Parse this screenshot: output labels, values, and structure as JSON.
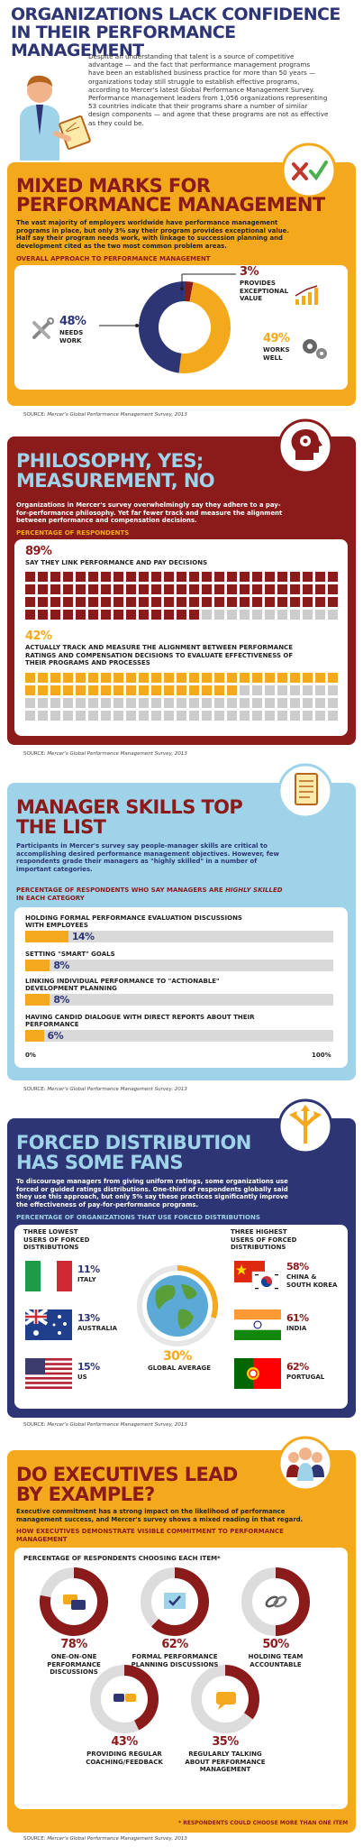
{
  "header": {
    "title_line1": "ORGANIZATIONS LACK CONFIDENCE",
    "title_line2": "IN THEIR PERFORMANCE MANAGEMENT",
    "intro_lines": [
      "Despite an understanding that talent is a source of competitive",
      "advantage — and the fact that performance management programs",
      "have been an established business practice for more than 50 years —",
      "organizations today still struggle to establish effective programs,",
      "according to Mercer's latest Global Performance Management Survey.",
      "Performance management leaders from 1,056 organizations representing",
      "53 countries indicate that their programs share a number of similar",
      "design components — and agree that these programs are not as effective",
      "as they could be."
    ]
  },
  "section1": {
    "title_line1": "MIXED MARKS FOR",
    "title_line2": "PERFORMANCE MANAGEMENT",
    "body_lines": [
      "The vast majority of employers worldwide have performance management",
      "programs in place, but only 3% say their program provides exceptional value.",
      "Half say their program needs work, with linkage to succession planning and",
      "development cited as the two most common problem areas."
    ],
    "subhead": "OVERALL APPROACH TO PERFORMANCE MANAGEMENT",
    "source_prefix": "SOURCE: ",
    "source": "Mercer's Global Performance Management Survey, 2013",
    "colors": {
      "band": "#f4a81b",
      "panel": "#ffffff",
      "title": "#8b1a1a",
      "needs": "#2d3575",
      "works": "#f4a81b",
      "exceptional": "#8b1a1a"
    }
  },
  "section2": {
    "title_line1": "PHILOSOPHY, YES;",
    "title_line2": "MEASUREMENT, NO",
    "body_lines": [
      "Organizations in Mercer's survey overwhelmingly say they adhere to a pay-",
      "for-performance philosophy. Yet far fewer track and measure the alignment",
      "between performance and compensation decisions."
    ],
    "subhead": "PERCENTAGE OF RESPONDENTS",
    "stat1_value": "89%",
    "stat1_label": "SAY THEY LINK PERFORMANCE AND PAY DECISIONS",
    "stat2_value": "42%",
    "stat2_label_lines": [
      "ACTUALLY TRACK AND MEASURE THE ALIGNMENT BETWEEN PERFORMANCE",
      "RATINGS AND COMPENSATION DECISIONS TO EVALUATE EFFECTIVENESS OF",
      "THEIR PROGRAMS AND PROCESSES"
    ],
    "source_prefix": "SOURCE: ",
    "source": "Mercer's Global Performance Management Survey, 2013",
    "colors": {
      "band": "#8b1a1a",
      "filled1": "#8b1a1a",
      "empty": "#cccccc",
      "filled2": "#f4a81b"
    }
  },
  "section3": {
    "title_line1": "MANAGER SKILLS TOP",
    "title_line2": "THE LIST",
    "body_lines": [
      "Participants in Mercer's survey say people-manager skills are critical to",
      "accomplishing desired performance management objectives. However, few",
      "respondents grade their managers as \"highly skilled\" in a number of",
      "important categories."
    ],
    "subhead_line1": "PERCENTAGE OF RESPONDENTS WHO SAY MANAGERS ARE",
    "subhead_italic": "HIGHLY SKILLED",
    "subhead_line2": "IN EACH CATEGORY",
    "axis_min": "0%",
    "axis_max": "100%",
    "source_prefix": "SOURCE: ",
    "source": "Mercer's Global Performance Management Survey, 2013",
    "colors": {
      "band": "#9ed3ea",
      "bar": "#f4a81b",
      "track": "#d9d9d9",
      "title": "#8b1a1a",
      "value": "#2d3575"
    }
  },
  "section4": {
    "title_line1": "FORCED DISTRIBUTION",
    "title_line2": "HAS SOME FANS",
    "body_lines": [
      "To discourage managers from giving uniform ratings, some organizations use",
      "forced or guided ratings distributions. One-third of respondents globally said",
      "they use this approach, but only 5% say these practices significantly improve",
      "the effectiveness of pay-for-performance programs."
    ],
    "subhead": "PERCENTAGE OF ORGANIZATIONS THAT USE FORCED DISTRIBUTIONS",
    "lowest_heading": [
      "THREE LOWEST",
      "USERS OF FORCED",
      "DISTRIBUTIONS"
    ],
    "highest_heading": [
      "THREE HIGHEST",
      "USERS OF FORCED",
      "DISTRIBUTIONS"
    ],
    "global_value": "30%",
    "global_label": "GLOBAL AVERAGE",
    "source_prefix": "SOURCE: ",
    "source": "Mercer's Global Performance Management Survey, 2013",
    "colors": {
      "band": "#2d3575",
      "value_low": "#2d3575",
      "value_high": "#8b1a1a"
    }
  },
  "section5": {
    "title_line1": "DO EXECUTIVES LEAD",
    "title_line2": "BY EXAMPLE?",
    "body_lines": [
      "Executive commitment has a strong impact on the likelihood of performance",
      "management success, and Mercer's survey shows a mixed reading in that regard."
    ],
    "subhead_lines": [
      "HOW EXECUTIVES DEMONSTRATE VISIBLE COMMITMENT TO PERFORMANCE",
      "MANAGEMENT"
    ],
    "panel_heading": "PERCENTAGE OF RESPONDENTS CHOOSING EACH ITEM*",
    "footnote": "* RESPONDENTS COULD CHOOSE MORE THAN ONE ITEM",
    "source_prefix": "SOURCE: ",
    "source": "Mercer's Global Performance Management Survey, 2013",
    "colors": {
      "band": "#f4a81b",
      "ring": "#8b1a1a",
      "track": "#dcdcdc"
    }
  },
  "chart_data": [
    {
      "type": "pie",
      "title": "OVERALL APPROACH TO PERFORMANCE MANAGEMENT",
      "categories": [
        "PROVIDES EXCEPTIONAL VALUE",
        "WORKS WELL",
        "NEEDS WORK"
      ],
      "values": [
        3,
        49,
        48
      ],
      "labels": [
        "3%",
        "49%",
        "48%"
      ],
      "label_lines": [
        [
          "PROVIDES",
          "EXCEPTIONAL",
          "VALUE"
        ],
        [
          "WORKS",
          "WELL"
        ],
        [
          "NEEDS",
          "WORK"
        ]
      ],
      "colors": [
        "#8b1a1a",
        "#f4a81b",
        "#2d3575"
      ]
    },
    {
      "type": "bar",
      "title": "PERCENTAGE OF RESPONDENTS",
      "categories": [
        "SAY THEY LINK PERFORMANCE AND PAY DECISIONS",
        "ACTUALLY TRACK AND MEASURE THE ALIGNMENT BETWEEN PERFORMANCE RATINGS AND COMPENSATION DECISIONS TO EVALUATE EFFECTIVENESS OF THEIR PROGRAMS AND PROCESSES"
      ],
      "values": [
        89,
        42
      ],
      "ylim": [
        0,
        100
      ]
    },
    {
      "type": "bar",
      "title": "PERCENTAGE OF RESPONDENTS WHO SAY MANAGERS ARE HIGHLY SKILLED IN EACH CATEGORY",
      "categories": [
        [
          "HOLDING FORMAL PERFORMANCE EVALUATION DISCUSSIONS",
          "WITH EMPLOYEES"
        ],
        [
          "SETTING \"SMART\" GOALS"
        ],
        [
          "LINKING INDIVIDUAL PERFORMANCE TO \"ACTIONABLE\"",
          "DEVELOPMENT PLANNING"
        ],
        [
          "HAVING CANDID DIALOGUE WITH DIRECT REPORTS ABOUT THEIR",
          "PERFORMANCE"
        ]
      ],
      "values": [
        14,
        8,
        8,
        6
      ],
      "labels": [
        "14%",
        "8%",
        "8%",
        "6%"
      ],
      "xlim": [
        0,
        100
      ]
    },
    {
      "type": "table",
      "title": "PERCENTAGE OF ORGANIZATIONS THAT USE FORCED DISTRIBUTIONS",
      "lowest": [
        {
          "country": "ITALY",
          "value": "11%",
          "flag": "italy-flag"
        },
        {
          "country": "AUSTRALIA",
          "value": "13%",
          "flag": "australia-flag"
        },
        {
          "country": "US",
          "value": "15%",
          "flag": "us-flag"
        }
      ],
      "highest": [
        {
          "country": "CHINA & SOUTH KOREA",
          "country_lines": [
            "CHINA &",
            "SOUTH KOREA"
          ],
          "value": "58%",
          "flag": "china-korea-flag"
        },
        {
          "country": "INDIA",
          "value": "61%",
          "flag": "india-flag"
        },
        {
          "country": "PORTUGAL",
          "value": "62%",
          "flag": "portugal-flag"
        }
      ],
      "global_average": 30
    },
    {
      "type": "pie",
      "title": "HOW EXECUTIVES DEMONSTRATE VISIBLE COMMITMENT TO PERFORMANCE MANAGEMENT",
      "categories": [
        "ONE-ON-ONE PERFORMANCE DISCUSSIONS",
        "FORMAL PERFORMANCE PLANNING DISCUSSIONS",
        "HOLDING TEAM ACCOUNTABLE",
        "PROVIDING REGULAR COACHING/FEEDBACK",
        "REGULARLY TALKING ABOUT PERFORMANCE MANAGEMENT"
      ],
      "values": [
        78,
        62,
        50,
        43,
        35
      ],
      "labels": [
        "78%",
        "62%",
        "50%",
        "43%",
        "35%"
      ],
      "label_lines": [
        [
          "ONE-ON-ONE",
          "PERFORMANCE",
          "DISCUSSIONS"
        ],
        [
          "FORMAL PERFORMANCE",
          "PLANNING DISCUSSIONS"
        ],
        [
          "HOLDING TEAM",
          "ACCOUNTABLE"
        ],
        [
          "PROVIDING REGULAR",
          "COACHING/FEEDBACK"
        ],
        [
          "REGULARLY TALKING",
          "ABOUT PERFORMANCE",
          "MANAGEMENT"
        ]
      ],
      "icons": [
        "chat-icon",
        "checklist-icon",
        "chain-link-icon",
        "coaching-chat-icon",
        "talking-icon"
      ]
    }
  ]
}
